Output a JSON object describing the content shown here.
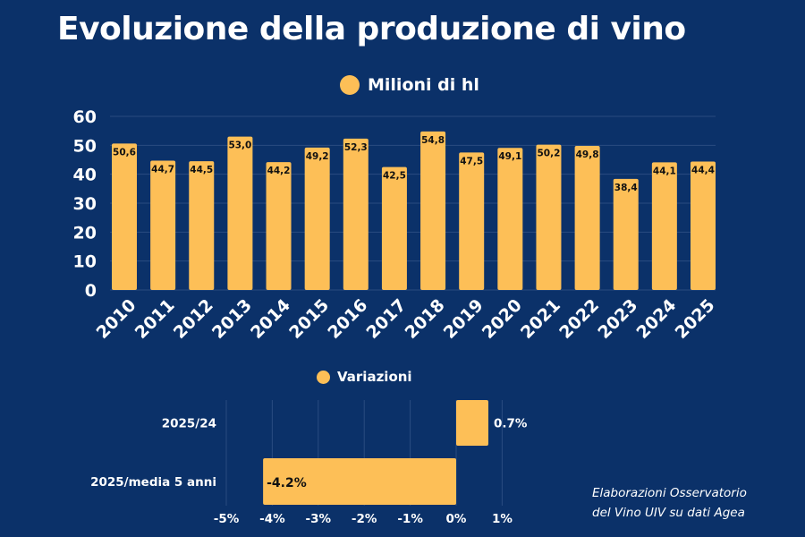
{
  "title": "Evoluzione della produzione di vino",
  "note": [
    "Elaborazioni Osservatorio",
    "del Vino UIV su dati Agea"
  ],
  "colors": {
    "background": "#0b3169",
    "bar": "#fdbf57",
    "grid": "#2a4c80"
  },
  "chart_data": [
    {
      "type": "bar",
      "legend": "Milioni di hl",
      "legend_position": "top",
      "categories": [
        "2010",
        "2011",
        "2012",
        "2013",
        "2014",
        "2015",
        "2016",
        "2017",
        "2018",
        "2019",
        "2020",
        "2021",
        "2022",
        "2023",
        "2024",
        "2025"
      ],
      "values": [
        50.6,
        44.7,
        44.5,
        53.0,
        44.2,
        49.2,
        52.3,
        42.5,
        54.8,
        47.5,
        49.1,
        50.2,
        49.8,
        38.4,
        44.1,
        44.4
      ],
      "data_labels": [
        "50,6",
        "44,7",
        "44,5",
        "53,0",
        "44,2",
        "49,2",
        "52,3",
        "42,5",
        "54,8",
        "47,5",
        "49,1",
        "50,2",
        "49,8",
        "38,4",
        "44,1",
        "44,4"
      ],
      "ylim": [
        0,
        60
      ],
      "yticks": [
        "0",
        "10",
        "20",
        "30",
        "40",
        "50",
        "60"
      ],
      "grid": true
    },
    {
      "type": "bar",
      "orientation": "horizontal",
      "legend": "Variazioni",
      "legend_position": "top",
      "categories": [
        "2025/24",
        "2025/media 5 anni"
      ],
      "values": [
        0.7,
        -4.2
      ],
      "data_labels": [
        "0.7%",
        "-4.2%"
      ],
      "xlim": [
        -5,
        1
      ],
      "xticks": [
        "-5%",
        "-4%",
        "-3%",
        "-2%",
        "-1%",
        "0%",
        "1%"
      ],
      "grid": true
    }
  ]
}
